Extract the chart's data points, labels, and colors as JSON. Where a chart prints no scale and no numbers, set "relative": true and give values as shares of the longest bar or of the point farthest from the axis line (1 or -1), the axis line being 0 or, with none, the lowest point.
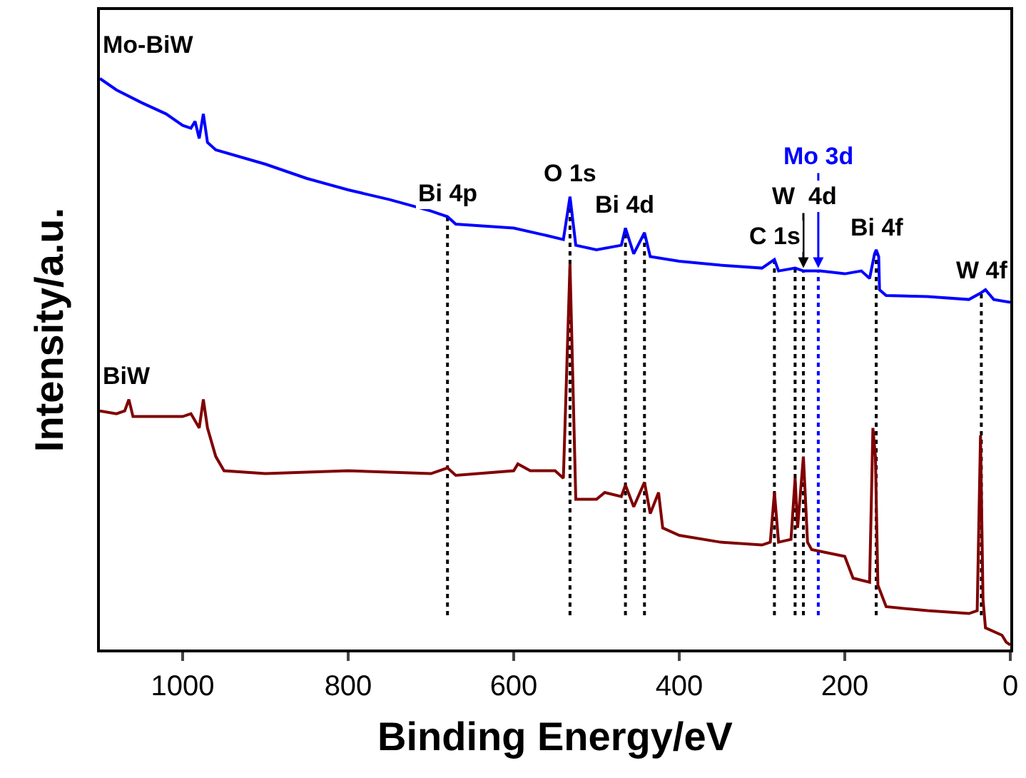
{
  "chart_data": {
    "type": "line",
    "relative": true,
    "xlabel": "Binding Energy/eV",
    "ylabel": "Intensity/a.u.",
    "xlim": [
      1100,
      0
    ],
    "xticks": [
      1000,
      800,
      600,
      400,
      200,
      0
    ],
    "tick_labels": "x",
    "grid": false,
    "legend": false,
    "marker": "none",
    "line_style": "solid",
    "series": [
      {
        "name": "Mo-BiW",
        "color": "#0000ff",
        "x": [
          1100,
          1080,
          1050,
          1020,
          1000,
          990,
          985,
          980,
          975,
          970,
          960,
          900,
          850,
          800,
          750,
          700,
          690,
          680,
          670,
          600,
          560,
          540,
          532,
          525,
          500,
          470,
          465,
          455,
          442,
          435,
          400,
          350,
          300,
          285,
          280,
          260,
          250,
          230,
          200,
          180,
          170,
          164,
          162,
          159,
          158,
          150,
          100,
          50,
          35,
          30,
          20,
          0
        ],
        "values": [
          1.0,
          0.98,
          0.958,
          0.938,
          0.918,
          0.913,
          0.925,
          0.895,
          0.938,
          0.888,
          0.875,
          0.85,
          0.825,
          0.805,
          0.788,
          0.768,
          0.763,
          0.758,
          0.745,
          0.738,
          0.725,
          0.718,
          0.793,
          0.708,
          0.7,
          0.708,
          0.738,
          0.693,
          0.73,
          0.688,
          0.68,
          0.673,
          0.668,
          0.683,
          0.663,
          0.668,
          0.663,
          0.663,
          0.658,
          0.663,
          0.65,
          0.693,
          0.7,
          0.688,
          0.63,
          0.62,
          0.618,
          0.613,
          0.625,
          0.63,
          0.613,
          0.608
        ]
      },
      {
        "name": "BiW",
        "color": "#800000",
        "x": [
          1100,
          1080,
          1070,
          1065,
          1060,
          1000,
          990,
          980,
          975,
          970,
          960,
          950,
          900,
          800,
          700,
          680,
          670,
          600,
          595,
          580,
          550,
          540,
          532,
          525,
          500,
          490,
          470,
          465,
          455,
          442,
          435,
          425,
          420,
          400,
          350,
          300,
          290,
          285,
          280,
          265,
          260,
          257,
          250,
          245,
          240,
          200,
          190,
          170,
          166,
          163,
          160,
          150,
          100,
          50,
          40,
          36,
          33,
          30,
          10,
          5,
          0
        ],
        "values": [
          0.418,
          0.413,
          0.418,
          0.438,
          0.408,
          0.408,
          0.413,
          0.388,
          0.438,
          0.388,
          0.338,
          0.313,
          0.308,
          0.313,
          0.308,
          0.318,
          0.305,
          0.313,
          0.325,
          0.313,
          0.313,
          0.3,
          0.675,
          0.263,
          0.263,
          0.275,
          0.268,
          0.288,
          0.25,
          0.293,
          0.238,
          0.275,
          0.213,
          0.2,
          0.188,
          0.183,
          0.188,
          0.275,
          0.188,
          0.193,
          0.3,
          0.213,
          0.338,
          0.188,
          0.175,
          0.163,
          0.125,
          0.118,
          0.388,
          0.338,
          0.113,
          0.075,
          0.068,
          0.063,
          0.068,
          0.375,
          0.088,
          0.038,
          0.025,
          0.013,
          0.008
        ]
      }
    ],
    "ref_lines": [
      {
        "axis": "x",
        "value": 680,
        "label": "Bi 4p",
        "color": "#000000",
        "line_style": "dotted"
      },
      {
        "axis": "x",
        "value": 532,
        "label": "O 1s",
        "color": "#000000",
        "line_style": "dotted"
      },
      {
        "axis": "x",
        "value": 465,
        "label": "Bi 4d",
        "color": "#000000",
        "line_style": "dotted"
      },
      {
        "axis": "x",
        "value": 442,
        "color": "#000000",
        "line_style": "dotted"
      },
      {
        "axis": "x",
        "value": 285,
        "label": "C 1s",
        "color": "#000000",
        "line_style": "dotted"
      },
      {
        "axis": "x",
        "value": 260,
        "color": "#000000",
        "line_style": "dotted"
      },
      {
        "axis": "x",
        "value": 250,
        "label": "W  4d",
        "color": "#000000",
        "line_style": "dotted"
      },
      {
        "axis": "x",
        "value": 232,
        "label": "Mo 3d",
        "color": "#0000ff",
        "line_style": "dotted"
      },
      {
        "axis": "x",
        "value": 162,
        "label": "Bi 4f",
        "color": "#000000",
        "line_style": "dotted"
      },
      {
        "axis": "x",
        "value": 35,
        "label": "W 4f",
        "color": "#000000",
        "line_style": "dotted"
      }
    ]
  }
}
